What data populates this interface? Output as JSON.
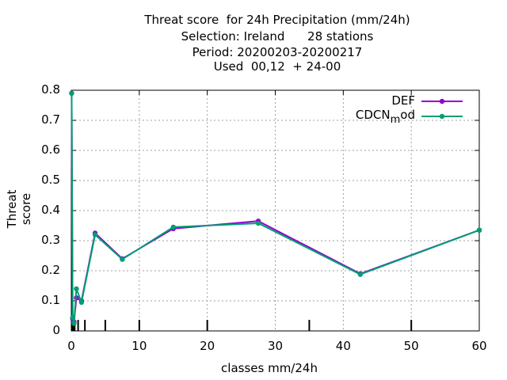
{
  "title_lines": [
    "Threat score  for 24h Precipitation (mm/24h)",
    "Selection: Ireland      28 stations",
    "Period: 20200203-20200217",
    "Used  00,12  + 24-00"
  ],
  "colors": {
    "DEF": "#9400d3",
    "CDCN_mod": "#009e73",
    "grid": "#a0a0a0"
  },
  "chart_data": {
    "type": "line",
    "xlabel": "classes mm/24h",
    "ylabel": "Threat score",
    "xlim": [
      0,
      60
    ],
    "ylim": [
      0,
      0.8
    ],
    "x_ticks": [
      0,
      10,
      20,
      30,
      40,
      50,
      60
    ],
    "y_ticks": [
      "0",
      "0.1",
      "0.2",
      "0.3",
      "0.4",
      "0.5",
      "0.6",
      "0.7",
      "0.8"
    ],
    "class_marks": [
      0.1,
      0.3,
      0.5,
      1,
      2,
      5,
      10,
      20,
      35,
      50
    ],
    "grid": true,
    "legend_position": "top-right",
    "legend": {
      "def": "DEF",
      "cdcn_main": "CDCN",
      "cdcn_sub": "m",
      "cdcn_tail": "od"
    },
    "series": [
      {
        "name": "DEF",
        "x": [
          0.05,
          0.2,
          0.4,
          0.75,
          1.5,
          3.5,
          7.5,
          15,
          27.5,
          42.5,
          60
        ],
        "y": [
          0.79,
          0.04,
          0.03,
          0.11,
          0.1,
          0.325,
          0.24,
          0.34,
          0.365,
          0.19,
          0.335
        ]
      },
      {
        "name": "CDCN_mod",
        "x": [
          0.05,
          0.2,
          0.4,
          0.75,
          1.5,
          3.5,
          7.5,
          15,
          27.5,
          42.5,
          60
        ],
        "y": [
          0.79,
          0.045,
          0.025,
          0.14,
          0.095,
          0.32,
          0.238,
          0.345,
          0.358,
          0.188,
          0.335
        ]
      }
    ]
  }
}
